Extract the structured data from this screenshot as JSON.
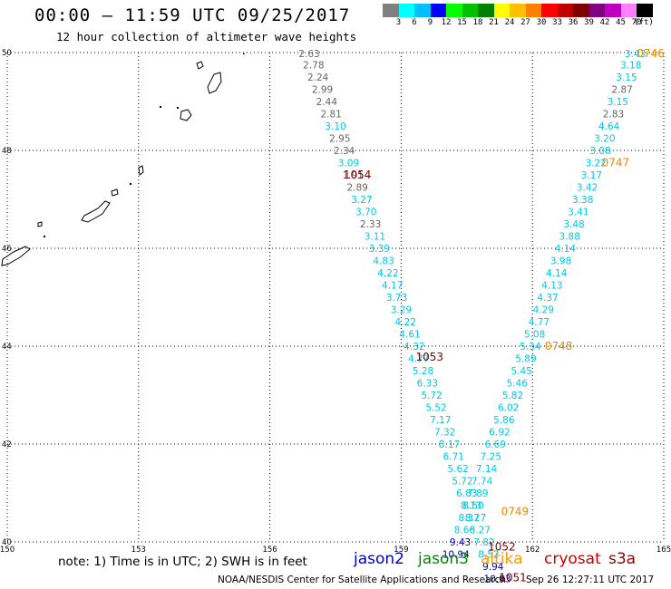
{
  "header": {
    "title": "00:00 — 11:59 UTC 09/25/2017",
    "subtitle": "12 hour collection of altimeter wave heights"
  },
  "scale": {
    "labels": [
      "3",
      "6",
      "9",
      "12",
      "15",
      "18",
      "21",
      "24",
      "27",
      "30",
      "33",
      "36",
      "39",
      "42",
      "45",
      "70",
      "(ft)"
    ],
    "colors": [
      "#808080",
      "#00ffff",
      "#00bfff",
      "#0000ff",
      "#00ff00",
      "#00c000",
      "#008000",
      "#ffff00",
      "#ffc000",
      "#ff8000",
      "#ff0000",
      "#c00000",
      "#800000",
      "#800080",
      "#c000c0",
      "#ff80ff",
      "#000000"
    ]
  },
  "map": {
    "lon_ticks": [
      "150",
      "153",
      "156",
      "159",
      "162",
      "165"
    ],
    "lat_ticks": [
      "50",
      "48",
      "46",
      "44",
      "42",
      "40"
    ],
    "lon_range": [
      150,
      165
    ],
    "lat_range": [
      40,
      50
    ]
  },
  "colors": {
    "gray": "#666666",
    "cyan": "#00c8e6",
    "blue": "#0000cc",
    "time_desc": "#7a0000",
    "time_asc": "#ee8800"
  },
  "tracks": [
    {
      "name": "descending",
      "points": [
        {
          "lon": 156.9,
          "lat": 49.98,
          "v": "2.63",
          "c": "gray"
        },
        {
          "lon": 157.0,
          "lat": 49.75,
          "v": "2.78",
          "c": "gray"
        },
        {
          "lon": 157.1,
          "lat": 49.5,
          "v": "2.24",
          "c": "gray"
        },
        {
          "lon": 157.2,
          "lat": 49.25,
          "v": "2.99",
          "c": "gray"
        },
        {
          "lon": 157.3,
          "lat": 49.0,
          "v": "2.44",
          "c": "gray"
        },
        {
          "lon": 157.4,
          "lat": 48.75,
          "v": "2.81",
          "c": "gray"
        },
        {
          "lon": 157.5,
          "lat": 48.5,
          "v": "3.10",
          "c": "cyan"
        },
        {
          "lon": 157.6,
          "lat": 48.25,
          "v": "2.95",
          "c": "gray"
        },
        {
          "lon": 157.7,
          "lat": 48.0,
          "v": "2.34",
          "c": "gray"
        },
        {
          "lon": 157.8,
          "lat": 47.75,
          "v": "3.09",
          "c": "cyan"
        },
        {
          "lon": 157.9,
          "lat": 47.5,
          "v": "1.91",
          "c": "gray"
        },
        {
          "lon": 158.0,
          "lat": 47.25,
          "v": "2.89",
          "c": "gray"
        },
        {
          "lon": 158.1,
          "lat": 47.0,
          "v": "3.27",
          "c": "cyan"
        },
        {
          "lon": 158.2,
          "lat": 46.75,
          "v": "3.70",
          "c": "cyan"
        },
        {
          "lon": 158.3,
          "lat": 46.5,
          "v": "2.33",
          "c": "gray"
        },
        {
          "lon": 158.4,
          "lat": 46.25,
          "v": "3.11",
          "c": "cyan"
        },
        {
          "lon": 158.5,
          "lat": 46.0,
          "v": "3.39",
          "c": "cyan"
        },
        {
          "lon": 158.6,
          "lat": 45.75,
          "v": "4.83",
          "c": "cyan"
        },
        {
          "lon": 158.7,
          "lat": 45.5,
          "v": "4.22",
          "c": "cyan"
        },
        {
          "lon": 158.8,
          "lat": 45.25,
          "v": "4.17",
          "c": "cyan"
        },
        {
          "lon": 158.9,
          "lat": 45.0,
          "v": "3.73",
          "c": "cyan"
        },
        {
          "lon": 159.0,
          "lat": 44.75,
          "v": "3.29",
          "c": "cyan"
        },
        {
          "lon": 159.1,
          "lat": 44.5,
          "v": "4.22",
          "c": "cyan"
        },
        {
          "lon": 159.2,
          "lat": 44.25,
          "v": "4.61",
          "c": "cyan"
        },
        {
          "lon": 159.3,
          "lat": 44.0,
          "v": "4.32",
          "c": "cyan"
        },
        {
          "lon": 159.4,
          "lat": 43.75,
          "v": "4.77",
          "c": "cyan"
        },
        {
          "lon": 159.5,
          "lat": 43.5,
          "v": "5.28",
          "c": "cyan"
        },
        {
          "lon": 159.6,
          "lat": 43.25,
          "v": "6.33",
          "c": "cyan"
        },
        {
          "lon": 159.7,
          "lat": 43.0,
          "v": "5.72",
          "c": "cyan"
        },
        {
          "lon": 159.8,
          "lat": 42.75,
          "v": "5.52",
          "c": "cyan"
        },
        {
          "lon": 159.9,
          "lat": 42.5,
          "v": "7.17",
          "c": "cyan"
        },
        {
          "lon": 160.0,
          "lat": 42.25,
          "v": "7.32",
          "c": "cyan"
        },
        {
          "lon": 160.1,
          "lat": 42.0,
          "v": "8.17",
          "c": "cyan"
        },
        {
          "lon": 160.2,
          "lat": 41.75,
          "v": "6.71",
          "c": "cyan"
        },
        {
          "lon": 160.3,
          "lat": 41.5,
          "v": "5.62",
          "c": "cyan"
        },
        {
          "lon": 160.4,
          "lat": 41.25,
          "v": "5.72",
          "c": "cyan"
        },
        {
          "lon": 160.5,
          "lat": 41.0,
          "v": "6.83",
          "c": "cyan"
        },
        {
          "lon": 160.6,
          "lat": 40.75,
          "v": "8.13",
          "c": "cyan"
        },
        {
          "lon": 160.7,
          "lat": 40.5,
          "v": "8.27",
          "c": "cyan"
        },
        {
          "lon": 160.8,
          "lat": 40.25,
          "v": "8.27",
          "c": "cyan"
        },
        {
          "lon": 160.9,
          "lat": 40.0,
          "v": "7.82",
          "c": "cyan"
        },
        {
          "lon": 161.0,
          "lat": 39.75,
          "v": "8.52",
          "c": "cyan"
        },
        {
          "lon": 161.1,
          "lat": 39.5,
          "v": "9.94",
          "c": "blue"
        },
        {
          "lon": 161.2,
          "lat": 39.25,
          "v": "10.03",
          "c": "blue"
        }
      ],
      "time_labels": [
        {
          "lon": 158.0,
          "lat": 47.5,
          "t": "1054"
        },
        {
          "lon": 159.65,
          "lat": 43.78,
          "t": "1053"
        },
        {
          "lon": 161.3,
          "lat": 39.9,
          "t": "1052"
        },
        {
          "lon": 161.55,
          "lat": 39.27,
          "t": "1051"
        }
      ]
    },
    {
      "name": "ascending",
      "points": [
        {
          "lon": 164.35,
          "lat": 49.98,
          "v": "3.43",
          "c": "cyan"
        },
        {
          "lon": 164.25,
          "lat": 49.75,
          "v": "3.18",
          "c": "cyan"
        },
        {
          "lon": 164.15,
          "lat": 49.5,
          "v": "3.15",
          "c": "cyan"
        },
        {
          "lon": 164.05,
          "lat": 49.25,
          "v": "2.87",
          "c": "gray"
        },
        {
          "lon": 163.95,
          "lat": 49.0,
          "v": "3.15",
          "c": "cyan"
        },
        {
          "lon": 163.85,
          "lat": 48.75,
          "v": "2.83",
          "c": "gray"
        },
        {
          "lon": 163.75,
          "lat": 48.5,
          "v": "4.64",
          "c": "cyan"
        },
        {
          "lon": 163.65,
          "lat": 48.25,
          "v": "3.20",
          "c": "cyan"
        },
        {
          "lon": 163.55,
          "lat": 48.0,
          "v": "3.08",
          "c": "cyan"
        },
        {
          "lon": 163.45,
          "lat": 47.75,
          "v": "3.22",
          "c": "cyan"
        },
        {
          "lon": 163.35,
          "lat": 47.5,
          "v": "3.17",
          "c": "cyan"
        },
        {
          "lon": 163.25,
          "lat": 47.25,
          "v": "3.42",
          "c": "cyan"
        },
        {
          "lon": 163.15,
          "lat": 47.0,
          "v": "3.38",
          "c": "cyan"
        },
        {
          "lon": 163.05,
          "lat": 46.75,
          "v": "3.41",
          "c": "cyan"
        },
        {
          "lon": 162.95,
          "lat": 46.5,
          "v": "3.48",
          "c": "cyan"
        },
        {
          "lon": 162.85,
          "lat": 46.25,
          "v": "3.88",
          "c": "cyan"
        },
        {
          "lon": 162.75,
          "lat": 46.0,
          "v": "4.14",
          "c": "cyan"
        },
        {
          "lon": 162.65,
          "lat": 45.75,
          "v": "3.98",
          "c": "cyan"
        },
        {
          "lon": 162.55,
          "lat": 45.5,
          "v": "4.14",
          "c": "cyan"
        },
        {
          "lon": 162.45,
          "lat": 45.25,
          "v": "4.13",
          "c": "cyan"
        },
        {
          "lon": 162.35,
          "lat": 45.0,
          "v": "4.37",
          "c": "cyan"
        },
        {
          "lon": 162.25,
          "lat": 44.75,
          "v": "4.29",
          "c": "cyan"
        },
        {
          "lon": 162.15,
          "lat": 44.5,
          "v": "4.77",
          "c": "cyan"
        },
        {
          "lon": 162.05,
          "lat": 44.25,
          "v": "5.08",
          "c": "cyan"
        },
        {
          "lon": 161.95,
          "lat": 44.0,
          "v": "5.34",
          "c": "cyan"
        },
        {
          "lon": 161.85,
          "lat": 43.75,
          "v": "5.89",
          "c": "cyan"
        },
        {
          "lon": 161.75,
          "lat": 43.5,
          "v": "5.45",
          "c": "cyan"
        },
        {
          "lon": 161.65,
          "lat": 43.25,
          "v": "5.46",
          "c": "cyan"
        },
        {
          "lon": 161.55,
          "lat": 43.0,
          "v": "5.82",
          "c": "cyan"
        },
        {
          "lon": 161.45,
          "lat": 42.75,
          "v": "6.02",
          "c": "cyan"
        },
        {
          "lon": 161.35,
          "lat": 42.5,
          "v": "5.86",
          "c": "cyan"
        },
        {
          "lon": 161.25,
          "lat": 42.25,
          "v": "6.92",
          "c": "cyan"
        },
        {
          "lon": 161.15,
          "lat": 42.0,
          "v": "6.69",
          "c": "cyan"
        },
        {
          "lon": 161.05,
          "lat": 41.75,
          "v": "7.25",
          "c": "cyan"
        },
        {
          "lon": 160.95,
          "lat": 41.5,
          "v": "7.14",
          "c": "cyan"
        },
        {
          "lon": 160.85,
          "lat": 41.25,
          "v": "7.74",
          "c": "cyan"
        },
        {
          "lon": 160.75,
          "lat": 41.0,
          "v": "7.89",
          "c": "cyan"
        },
        {
          "lon": 160.65,
          "lat": 40.75,
          "v": "8.50",
          "c": "cyan"
        },
        {
          "lon": 160.55,
          "lat": 40.5,
          "v": "8.37",
          "c": "cyan"
        },
        {
          "lon": 160.45,
          "lat": 40.25,
          "v": "8.66",
          "c": "cyan"
        },
        {
          "lon": 160.35,
          "lat": 40.0,
          "v": "9.43",
          "c": "blue"
        },
        {
          "lon": 160.25,
          "lat": 39.75,
          "v": "10.94",
          "c": "blue"
        }
      ],
      "time_labels": [
        {
          "lon": 164.7,
          "lat": 49.98,
          "t": "0746"
        },
        {
          "lon": 163.9,
          "lat": 47.75,
          "t": "0747"
        },
        {
          "lon": 162.6,
          "lat": 44.0,
          "t": "0748"
        },
        {
          "lon": 161.6,
          "lat": 40.62,
          "t": "0749"
        }
      ]
    }
  ],
  "footer": {
    "note": "note: 1) Time is in UTC; 2) SWH is in feet",
    "satellites": [
      {
        "label": "jason2",
        "color": "#0000cc"
      },
      {
        "label": "jason3",
        "color": "#008800"
      },
      {
        "label": "altika",
        "color": "#ff9900"
      },
      {
        "label": "cryosat",
        "color": "#cc0000"
      },
      {
        "label": "s3a",
        "color": "#8b0000"
      }
    ],
    "credit": "NOAA/NESDIS Center for Satellite Applications and Research",
    "timestamp": "Sep 26 12:27:11 UTC 2017"
  }
}
